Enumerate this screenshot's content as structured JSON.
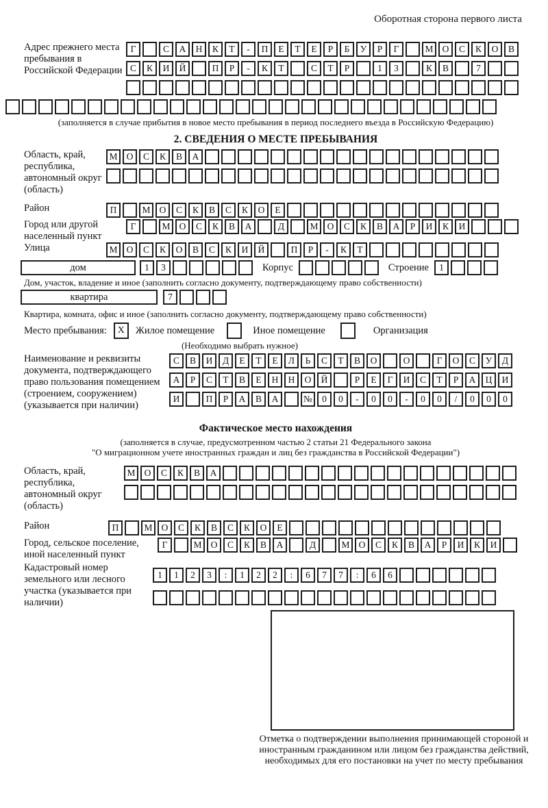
{
  "header": {
    "note": "Оборотная сторона первого листа"
  },
  "prev_address": {
    "label": "Адрес прежнего места пребывания в Российской Федерации",
    "rows": [
      {
        "len": 24,
        "text": "Г САНКТ-ПЕТЕРБУРГ МОСКОВ"
      },
      {
        "len": 24,
        "text": "СКИЙ ПР-КТ СТР 13 КВ 7"
      },
      {
        "len": 24,
        "text": ""
      },
      {
        "len": 30,
        "text": ""
      }
    ],
    "caption": "(заполняется в случае прибытия в новое место пребывания в период последнего въезда в Российскую Федерацию)"
  },
  "section2": {
    "title": "2. СВЕДЕНИЯ О МЕСТЕ ПРЕБЫВАНИЯ",
    "region": {
      "label": "Область, край, республика, автономный округ (область)",
      "rows": [
        {
          "len": 24,
          "text": "МОСКВА"
        },
        {
          "len": 24,
          "text": ""
        }
      ]
    },
    "district": {
      "label": "Район",
      "row": {
        "len": 24,
        "text": "П МОСКВСКОЕ"
      }
    },
    "city": {
      "label": "Город или другой населенный пункт",
      "row": {
        "len": 24,
        "text": "Г МОСКВА Д МОСКВАРИКИ"
      }
    },
    "street": {
      "label": "Улица",
      "row": {
        "len": 24,
        "text": "МОСКОВСКИЙ ПР-КТ"
      }
    },
    "house": {
      "box_label": "дом",
      "cells": {
        "len": 7,
        "text": "13"
      },
      "korpus_label": "Корпус",
      "korpus_cells": {
        "len": 5,
        "text": ""
      },
      "stroenie_label": "Строение",
      "stroenie_cells": {
        "len": 4,
        "text": "1"
      }
    },
    "house_caption": "Дом, участок, владение и иное (заполнить согласно документу, подтверждающему право собственности)",
    "apartment": {
      "box_label": "квартира",
      "cells": {
        "len": 4,
        "text": "7"
      }
    },
    "apartment_caption": "Квартира, комната, офис и иное (заполнить согласно документу, подтверждающему право собственности)",
    "stay_place": {
      "label": "Место пребывания:",
      "options": [
        {
          "label": "Жилое помещение",
          "checked": "X"
        },
        {
          "label": "Иное помещение",
          "checked": ""
        },
        {
          "label": "Организация",
          "checked": ""
        }
      ],
      "note": "(Необходимо выбрать нужное)"
    },
    "doc": {
      "label": "Наименование и реквизиты документа, подтверждающего право пользования помещением (строением, сооружением) (указывается при наличии)",
      "rows": [
        {
          "len": 21,
          "text": "СВИДЕТЕЛЬСТВО О ГОСУД"
        },
        {
          "len": 21,
          "text": "АРСТВЕННОЙ РЕГИСТРАЦИ"
        },
        {
          "len": 21,
          "text": "И ПРАВА №00-00-00/000"
        }
      ]
    }
  },
  "factual": {
    "title": "Фактическое место нахождения",
    "caption_line1": "(заполняется в случае, предусмотренном частью 2 статьи 21 Федерального закона",
    "caption_line2": "\"О миграционном учете иностранных граждан и лиц без гражданства в Российской Федерации\")",
    "region": {
      "label": "Область, край, республика, автономный округ (область)",
      "rows": [
        {
          "len": 24,
          "text": "МОСКВА"
        },
        {
          "len": 24,
          "text": ""
        }
      ]
    },
    "district": {
      "label": "Район",
      "row": {
        "len": 24,
        "text": "П МОСКВСКОЕ"
      }
    },
    "city": {
      "label": "Город, сельское поселение, иной населенный пункт",
      "row": {
        "len": 22,
        "text": "Г МОСКВА Д МОСКВАРИКИ"
      }
    },
    "cadastral": {
      "label": "Кадастровый номер земельного или лесного участка (указывается при наличии)",
      "rows": [
        {
          "len": 21,
          "text": "1123:122:677:66"
        },
        {
          "len": 21,
          "text": ""
        }
      ]
    },
    "confirmation_caption": "Отметка о подтверждении выполнения принимающей стороной и иностранным гражданином или лицом без гражданства действий, необходимых для его постановки на учет по месту пребывания"
  }
}
